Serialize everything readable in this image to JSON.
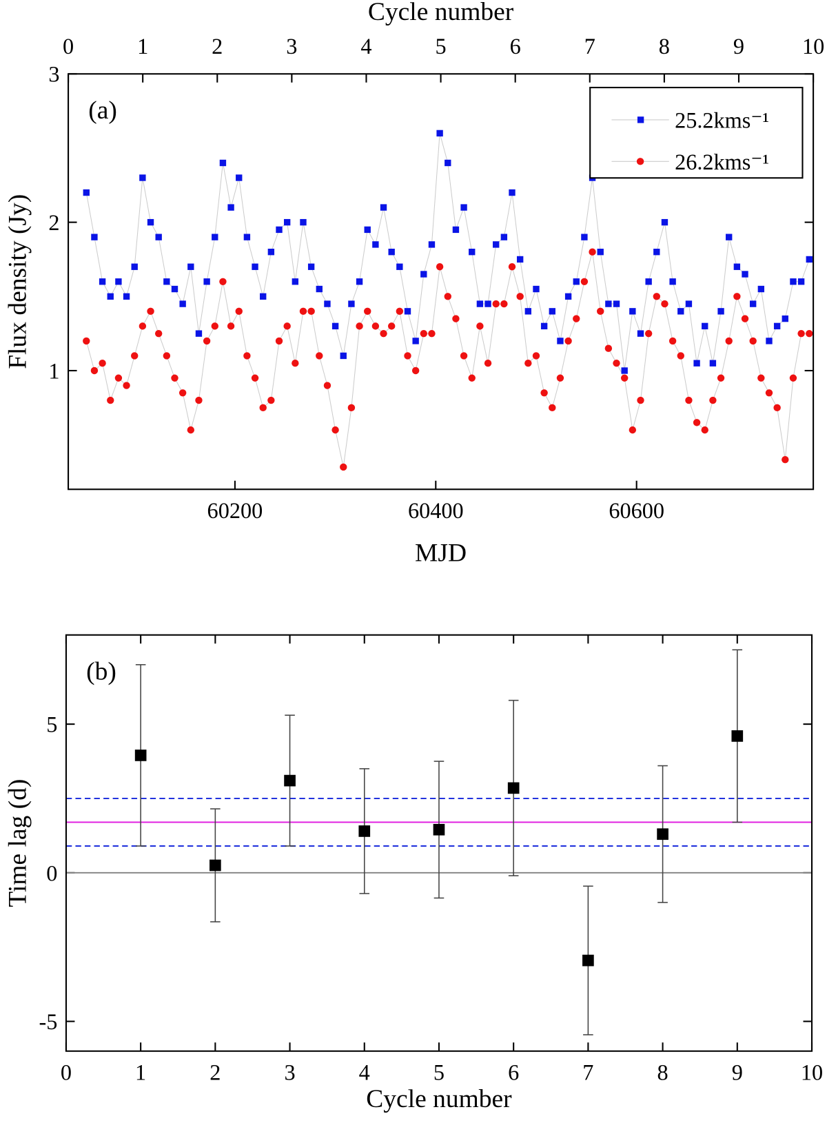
{
  "chart_data": [
    {
      "type": "scatter",
      "annotation": "(a)",
      "xlabel": "MJD",
      "x2label": "Cycle number",
      "ylabel": "Flux density (Jy)",
      "x": [
        60052,
        60060,
        60068,
        60076,
        60084,
        60092,
        60100,
        60108,
        60116,
        60124,
        60132,
        60140,
        60148,
        60156,
        60164,
        60172,
        60180,
        60188,
        60196,
        60204,
        60212,
        60220,
        60228,
        60236,
        60244,
        60252,
        60260,
        60268,
        60276,
        60284,
        60292,
        60300,
        60308,
        60316,
        60324,
        60332,
        60340,
        60348,
        60356,
        60364,
        60372,
        60380,
        60388,
        60396,
        60404,
        60412,
        60420,
        60428,
        60436,
        60444,
        60452,
        60460,
        60468,
        60476,
        60484,
        60492,
        60500,
        60508,
        60516,
        60524,
        60532,
        60540,
        60548,
        60556,
        60564,
        60572,
        60580,
        60588,
        60596,
        60604,
        60612,
        60620,
        60628,
        60636,
        60644,
        60652,
        60660,
        60668,
        60676,
        60684,
        60692,
        60700,
        60708,
        60716,
        60724,
        60732,
        60740,
        60748,
        60756,
        60764,
        60772
      ],
      "series": [
        {
          "name": "25.2kms⁻¹",
          "color": "#0a14e6",
          "marker": "square",
          "values": [
            2.2,
            1.9,
            1.6,
            1.5,
            1.6,
            1.5,
            1.7,
            2.3,
            2.0,
            1.9,
            1.6,
            1.55,
            1.45,
            1.7,
            1.25,
            1.6,
            1.9,
            2.4,
            2.1,
            2.3,
            1.9,
            1.7,
            1.5,
            1.8,
            1.95,
            2.0,
            1.6,
            2.0,
            1.7,
            1.55,
            1.45,
            1.3,
            1.1,
            1.45,
            1.6,
            1.95,
            1.85,
            2.1,
            1.8,
            1.7,
            1.4,
            1.2,
            1.65,
            1.85,
            2.6,
            2.4,
            1.95,
            2.1,
            1.8,
            1.45,
            1.45,
            1.85,
            1.9,
            2.2,
            1.75,
            1.4,
            1.55,
            1.3,
            1.4,
            1.2,
            1.5,
            1.6,
            1.9,
            2.3,
            1.8,
            1.45,
            1.45,
            1.0,
            1.4,
            1.25,
            1.6,
            1.8,
            2.0,
            1.6,
            1.4,
            1.45,
            1.05,
            1.3,
            1.05,
            1.4,
            1.9,
            1.7,
            1.65,
            1.45,
            1.55,
            1.2,
            1.3,
            1.35,
            1.6,
            1.6,
            1.75
          ]
        },
        {
          "name": "26.2kms⁻¹",
          "color": "#ee1111",
          "marker": "circle",
          "values": [
            1.2,
            1.0,
            1.05,
            0.8,
            0.95,
            0.9,
            1.1,
            1.3,
            1.4,
            1.25,
            1.1,
            0.95,
            0.85,
            0.6,
            0.8,
            1.2,
            1.3,
            1.6,
            1.3,
            1.4,
            1.1,
            0.95,
            0.75,
            0.8,
            1.2,
            1.3,
            1.05,
            1.4,
            1.4,
            1.1,
            0.9,
            0.6,
            0.35,
            0.75,
            1.3,
            1.4,
            1.3,
            1.25,
            1.3,
            1.4,
            1.1,
            1.0,
            1.25,
            1.25,
            1.7,
            1.5,
            1.35,
            1.1,
            0.95,
            1.3,
            1.05,
            1.45,
            1.45,
            1.7,
            1.5,
            1.05,
            1.1,
            0.85,
            0.75,
            0.95,
            1.2,
            1.35,
            1.6,
            1.8,
            1.4,
            1.15,
            1.05,
            0.95,
            0.6,
            0.8,
            1.25,
            1.5,
            1.45,
            1.2,
            1.1,
            0.8,
            0.65,
            0.6,
            0.8,
            0.95,
            1.2,
            1.5,
            1.35,
            1.2,
            0.95,
            0.85,
            0.75,
            0.4,
            0.95,
            1.25,
            1.25
          ]
        }
      ],
      "connect": true,
      "line_color": "#cccccc",
      "xlim": [
        60034,
        60776
      ],
      "xticks": [
        60200,
        60400,
        60600
      ],
      "x2lim": [
        0,
        10
      ],
      "x2ticks": [
        0,
        1,
        2,
        3,
        4,
        5,
        6,
        7,
        8,
        9,
        10
      ],
      "ylim": [
        0.2,
        3
      ],
      "yticks": [
        1,
        2,
        3
      ],
      "legend": "upper right"
    },
    {
      "type": "errorbar",
      "annotation": "(b)",
      "xlabel": "Cycle number",
      "ylabel": "Time lag (d)",
      "x": [
        1,
        2,
        3,
        4,
        5,
        6,
        7,
        8,
        9
      ],
      "values": [
        3.95,
        0.25,
        3.1,
        1.4,
        1.45,
        2.85,
        -2.95,
        1.3,
        4.6
      ],
      "errors": [
        3.05,
        1.9,
        2.2,
        2.1,
        2.3,
        2.95,
        2.5,
        2.3,
        2.9
      ],
      "color": "#000000",
      "hlines": [
        {
          "value": 0,
          "color": "#888888",
          "style": "solid"
        },
        {
          "value": 1.7,
          "color": "#e020e0",
          "style": "solid"
        },
        {
          "value": 2.5,
          "color": "#2233dd",
          "style": "dashed"
        },
        {
          "value": 0.9,
          "color": "#2233dd",
          "style": "dashed"
        }
      ],
      "xlim": [
        0,
        10
      ],
      "xticks": [
        0,
        1,
        2,
        3,
        4,
        5,
        6,
        7,
        8,
        9,
        10
      ],
      "ylim": [
        -6,
        8
      ],
      "yticks": [
        -5,
        0,
        5
      ]
    }
  ]
}
